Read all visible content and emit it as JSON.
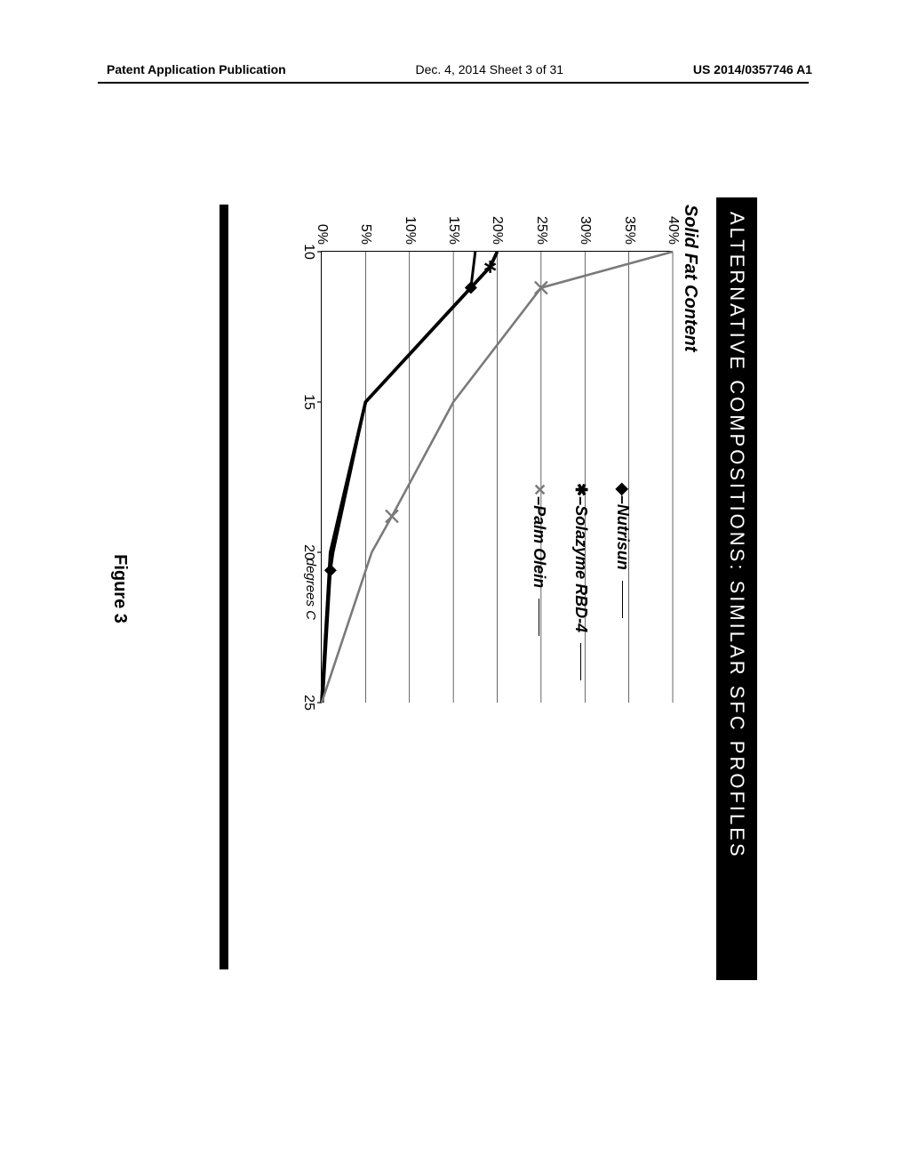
{
  "header": {
    "left": "Patent Application Publication",
    "center": "Dec. 4, 2014  Sheet 3 of 31",
    "right": "US 2014/0357746 A1"
  },
  "figure": {
    "title_bar": "ALTERNATIVE COMPOSITIONS: SIMILAR SFC PROFILES",
    "subtitle": "Solid Fat Content",
    "caption": "Figure 3",
    "chart": {
      "type": "line",
      "xlabel": "degrees C",
      "xlim": [
        10,
        25
      ],
      "ylim": [
        0,
        40
      ],
      "xtick_step": 5,
      "yticks": [
        0,
        5,
        10,
        15,
        20,
        25,
        30,
        35,
        40
      ],
      "ytick_format": "percent",
      "xticks": [
        10,
        15,
        20,
        25
      ],
      "grid_color": "#000000",
      "background_color": "#ffffff",
      "axis_color": "#000000",
      "series": [
        {
          "name": "Nutrisun",
          "marker": "diamond",
          "line_color": "#000000",
          "line_width": 3.0,
          "points": [
            {
              "x": 10,
              "y": 17.5
            },
            {
              "x": 11.2,
              "y": 17.0,
              "marker": true
            },
            {
              "x": 15,
              "y": 5.0
            },
            {
              "x": 20,
              "y": 1.3
            },
            {
              "x": 20.6,
              "y": 1.0,
              "marker": true
            },
            {
              "x": 25,
              "y": 0.1
            }
          ]
        },
        {
          "name": "Solazyme  RBD-4",
          "marker": "star",
          "line_color": "#000000",
          "line_width": 3.8,
          "points": [
            {
              "x": 10,
              "y": 20.0
            },
            {
              "x": 10.5,
              "y": 19.2,
              "marker": true
            },
            {
              "x": 15,
              "y": 5.0
            },
            {
              "x": 20,
              "y": 1.0
            },
            {
              "x": 25,
              "y": 0.0
            }
          ]
        },
        {
          "name": "Palm Olein",
          "marker": "x",
          "line_color": "#7a7a7a",
          "line_width": 2.6,
          "points": [
            {
              "x": 10,
              "y": 40.0
            },
            {
              "x": 11.2,
              "y": 25.0,
              "marker": true
            },
            {
              "x": 15,
              "y": 15.0
            },
            {
              "x": 18.8,
              "y": 8.0,
              "marker": true
            },
            {
              "x": 20,
              "y": 5.7
            },
            {
              "x": 25,
              "y": 0.0
            }
          ]
        }
      ],
      "legend": {
        "position": "inside-upper-right",
        "fontsize": 18,
        "font_style": "italic bold"
      },
      "label_fontsize": 16
    }
  }
}
